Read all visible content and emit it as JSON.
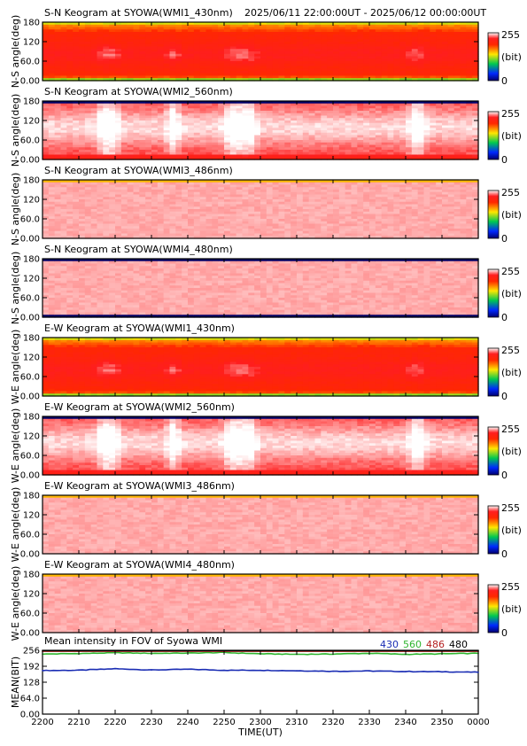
{
  "header": {
    "time_range": "2025/06/11 22:00:00UT - 2025/06/12 00:00:00UT"
  },
  "colorbar": {
    "max_label": "255",
    "min_label": "0",
    "unit_label": "(bit)"
  },
  "chart_data": [
    {
      "type": "heatmap",
      "title": "S-N Keogram at SYOWA(WMI1_430nm)",
      "ylabel": "N-S angle(deg)",
      "yticks": [
        "0.00",
        "60.0",
        "120",
        "180"
      ],
      "ylim": [
        0,
        180
      ],
      "profile": "wmi1",
      "intensity_note": "red-yellow, bright band near 20-150 deg"
    },
    {
      "type": "heatmap",
      "title": "S-N Keogram at SYOWA(WMI2_560nm)",
      "ylabel": "N-S angle(deg)",
      "yticks": [
        "0.00",
        "60.0",
        "120",
        "180"
      ],
      "ylim": [
        0,
        180
      ],
      "profile": "wmi2"
    },
    {
      "type": "heatmap",
      "title": "S-N Keogram at SYOWA(WMI3_486nm)",
      "ylabel": "N-S angle(deg)",
      "yticks": [
        "0.00",
        "60.0",
        "120",
        "180"
      ],
      "ylim": [
        0,
        180
      ],
      "profile": "faint"
    },
    {
      "type": "heatmap",
      "title": "S-N Keogram at SYOWA(WMI4_480nm)",
      "ylabel": "N-S angle(deg)",
      "yticks": [
        "0.00",
        "60.0",
        "120",
        "180"
      ],
      "ylim": [
        0,
        180
      ],
      "profile": "faint_dark_edges"
    },
    {
      "type": "heatmap",
      "title": "E-W Keogram at SYOWA(WMI1_430nm)",
      "ylabel": "W-E angle(deg)",
      "yticks": [
        "0.00",
        "60.0",
        "120",
        "180"
      ],
      "ylim": [
        0,
        180
      ],
      "profile": "wmi1"
    },
    {
      "type": "heatmap",
      "title": "E-W Keogram at SYOWA(WMI2_560nm)",
      "ylabel": "W-E angle(deg)",
      "yticks": [
        "0.00",
        "60.0",
        "120",
        "180"
      ],
      "ylim": [
        0,
        180
      ],
      "profile": "wmi2"
    },
    {
      "type": "heatmap",
      "title": "E-W Keogram at SYOWA(WMI3_486nm)",
      "ylabel": "W-E angle(deg)",
      "yticks": [
        "0.00",
        "60.0",
        "120",
        "180"
      ],
      "ylim": [
        0,
        180
      ],
      "profile": "faint"
    },
    {
      "type": "heatmap",
      "title": "E-W Keogram at SYOWA(WMI4_480nm)",
      "ylabel": "W-E angle(deg)",
      "yticks": [
        "0.00",
        "60.0",
        "120",
        "180"
      ],
      "ylim": [
        0,
        180
      ],
      "profile": "faint"
    },
    {
      "type": "line",
      "title": "Mean intensity in FOV of Syowa WMI",
      "ylabel": "MEAN(BIT)",
      "yticks": [
        "0.00",
        "64.0",
        "128",
        "192",
        "256"
      ],
      "ylim": [
        0,
        256
      ],
      "x": [
        "2200",
        "2210",
        "2220",
        "2230",
        "2240",
        "2250",
        "2300",
        "2310",
        "2320",
        "2330",
        "2340",
        "2350",
        "0000"
      ],
      "series": [
        {
          "name": "430",
          "color": "#1a2db4",
          "values": [
            175,
            176,
            182,
            177,
            180,
            176,
            176,
            174,
            172,
            173,
            171,
            170,
            168
          ]
        },
        {
          "name": "560",
          "color": "#2fb52f",
          "values": [
            241,
            243,
            246,
            244,
            245,
            247,
            242,
            240,
            241,
            244,
            240,
            242,
            244
          ]
        },
        {
          "name": "486",
          "color": "#b42020",
          "values": [
            252,
            252,
            252,
            252,
            252,
            252,
            252,
            252,
            252,
            252,
            252,
            252,
            252
          ]
        },
        {
          "name": "480",
          "color": "#000000",
          "values": [
            255,
            255,
            255,
            255,
            255,
            255,
            255,
            255,
            255,
            255,
            255,
            255,
            255
          ]
        }
      ]
    }
  ],
  "xaxis": {
    "label": "TIME(UT)",
    "ticks": [
      "2200",
      "2210",
      "2220",
      "2230",
      "2240",
      "2250",
      "2300",
      "2310",
      "2320",
      "2330",
      "2340",
      "2350",
      "0000"
    ]
  }
}
